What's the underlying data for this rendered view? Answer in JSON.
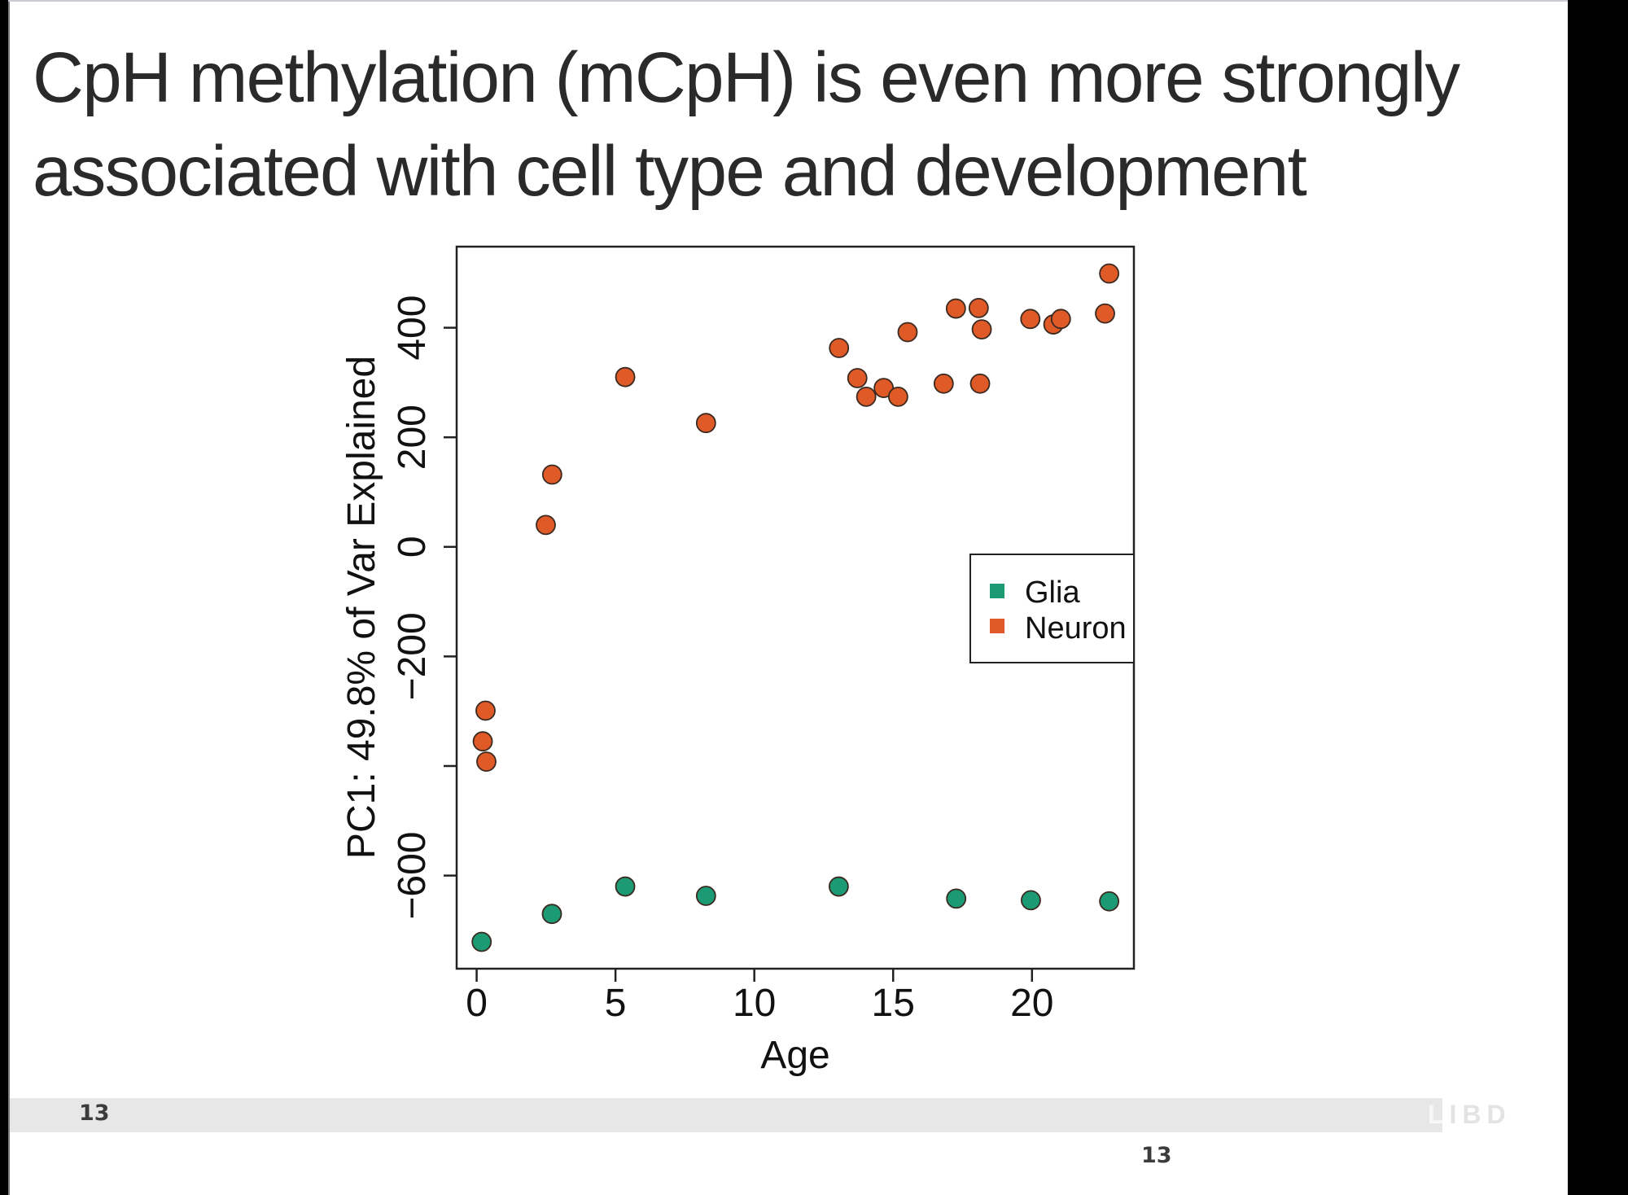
{
  "slide": {
    "title_lines": [
      "CpH methylation (mCpH) is even more strongly",
      "associated with cell type and development"
    ],
    "page_number": "13",
    "page_number_secondary": "13",
    "logo_text": "LIBD",
    "logo_first_letter": "L",
    "logo_rest": "IBD"
  },
  "colors": {
    "glia": "#1B9A74",
    "neuron": "#E05A28",
    "point_outline": "#3a2a20",
    "axis": "#222222"
  },
  "chart_data": {
    "type": "scatter",
    "title": "",
    "xlabel": "Age",
    "ylabel": "PC1: 49.8% of Var Explained",
    "xlim": [
      -0.72,
      23.67
    ],
    "ylim": [
      -770,
      548
    ],
    "xticks": [
      0,
      5,
      10,
      15,
      20
    ],
    "xtick_labels": [
      "0",
      "5",
      "10",
      "15",
      "20"
    ],
    "yticks": [
      -600,
      -400,
      -200,
      0,
      200,
      400
    ],
    "ytick_labels": [
      "−600",
      "",
      "−200",
      "0",
      "200",
      "400"
    ],
    "grid": false,
    "legend": {
      "position": "right-middle",
      "entries": [
        "Glia",
        "Neuron"
      ]
    },
    "series": [
      {
        "name": "Glia",
        "points": [
          {
            "x": 0.18,
            "y": -721
          },
          {
            "x": 2.71,
            "y": -670
          },
          {
            "x": 5.35,
            "y": -620
          },
          {
            "x": 8.26,
            "y": -637
          },
          {
            "x": 13.04,
            "y": -620
          },
          {
            "x": 17.27,
            "y": -642
          },
          {
            "x": 19.96,
            "y": -645
          },
          {
            "x": 22.78,
            "y": -647
          }
        ]
      },
      {
        "name": "Neuron",
        "points": [
          {
            "x": 0.32,
            "y": -299
          },
          {
            "x": 0.22,
            "y": -355
          },
          {
            "x": 0.35,
            "y": -392
          },
          {
            "x": 2.49,
            "y": 40
          },
          {
            "x": 2.72,
            "y": 132
          },
          {
            "x": 5.35,
            "y": 310
          },
          {
            "x": 8.26,
            "y": 226
          },
          {
            "x": 13.05,
            "y": 363
          },
          {
            "x": 13.71,
            "y": 308
          },
          {
            "x": 14.03,
            "y": 274
          },
          {
            "x": 14.66,
            "y": 290
          },
          {
            "x": 15.18,
            "y": 274
          },
          {
            "x": 15.52,
            "y": 392
          },
          {
            "x": 16.82,
            "y": 298
          },
          {
            "x": 17.26,
            "y": 435
          },
          {
            "x": 18.08,
            "y": 436
          },
          {
            "x": 18.19,
            "y": 397
          },
          {
            "x": 18.13,
            "y": 298
          },
          {
            "x": 19.94,
            "y": 416
          },
          {
            "x": 20.77,
            "y": 406
          },
          {
            "x": 21.04,
            "y": 416
          },
          {
            "x": 22.63,
            "y": 426
          },
          {
            "x": 22.78,
            "y": 499
          }
        ]
      }
    ]
  }
}
